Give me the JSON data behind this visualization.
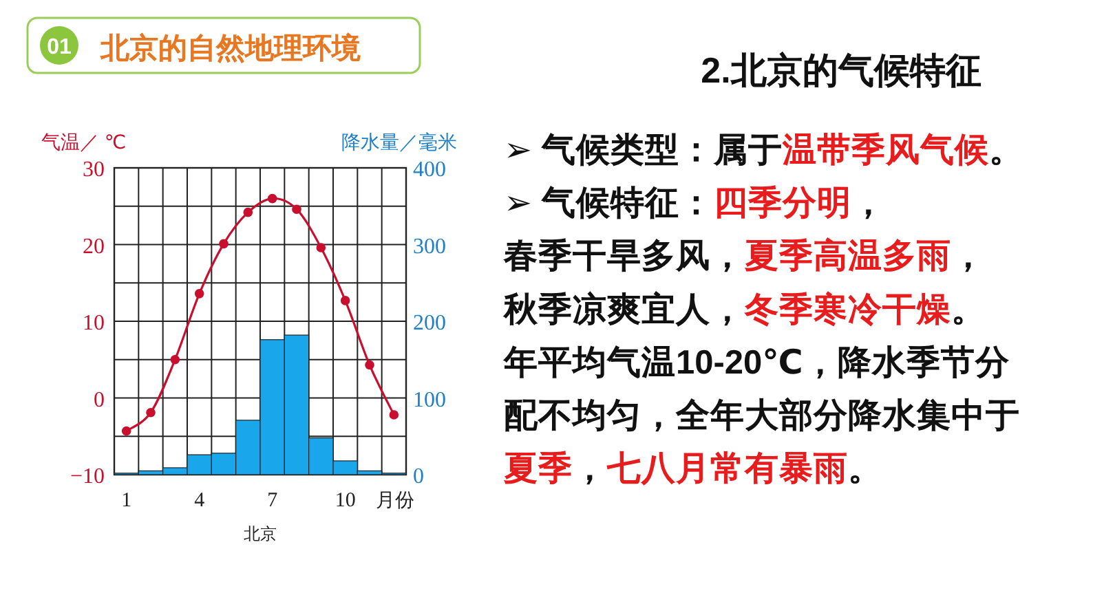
{
  "chart_data": [
    {
      "type": "other",
      "title": "北京的自然地理环境",
      "annotations": [
        "01"
      ]
    },
    {
      "type": "bar",
      "categories": [
        "1",
        null,
        null,
        "4",
        null,
        null,
        "7",
        null,
        null,
        "10",
        null,
        null
      ],
      "series": [
        {
          "type": "bar",
          "axis": "y2",
          "color": "#19a6ea",
          "values": [
            2,
            5,
            9,
            26,
            28,
            71,
            176,
            182,
            48,
            18,
            5,
            2
          ]
        },
        {
          "type": "line",
          "axis": "y",
          "color": "#c8102e",
          "marker": "circle",
          "values": [
            -4.3,
            -1.9,
            5.0,
            13.6,
            20.1,
            24.2,
            26.0,
            24.6,
            19.6,
            12.7,
            4.3,
            -2.2
          ]
        }
      ],
      "ylabel": "气温／ ℃",
      "y2label": "降水量／毫米",
      "xlabel": "月份",
      "annotations": [
        "北京"
      ],
      "ylim": [
        -10,
        30
      ],
      "yticks": [
        {
          "value": -10,
          "label": "−10"
        },
        {
          "value": -5,
          "label": null
        },
        0,
        {
          "value": 5,
          "label": null
        },
        10,
        {
          "value": 15,
          "label": null
        },
        20,
        {
          "value": 25,
          "label": null
        },
        30
      ],
      "y2lim": [
        0,
        400
      ],
      "y2ticks": [
        0,
        100,
        200,
        300,
        400
      ],
      "grid": true
    },
    {
      "type": "other",
      "title": "2.北京的气候特征",
      "annotations": [
        "➢ 气候类型：属于",
        "温带季风气候",
        "。",
        "\n➢ 气候特征：",
        "四季分明",
        "，",
        "\n春季干旱多风，",
        "夏季高温多雨",
        "，",
        "\n秋季凉爽宜人，",
        "冬季寒冷干燥",
        "。",
        "\n年平均气温10-20℃，降水季节分",
        "\n配不均匀，全年大部分降水集中于",
        "\n夏季",
        "，",
        "七八月常有暴雨",
        "。"
      ],
      "colors": [
        "#111111",
        "#e81c1c",
        "#111111",
        "#111111",
        "#e81c1c",
        "#111111",
        "#111111",
        "#e81c1c",
        "#111111",
        "#111111",
        "#e81c1c",
        "#111111",
        "#111111",
        "#111111",
        "#e81c1c",
        "#111111",
        "#e81c1c",
        "#111111"
      ]
    }
  ]
}
